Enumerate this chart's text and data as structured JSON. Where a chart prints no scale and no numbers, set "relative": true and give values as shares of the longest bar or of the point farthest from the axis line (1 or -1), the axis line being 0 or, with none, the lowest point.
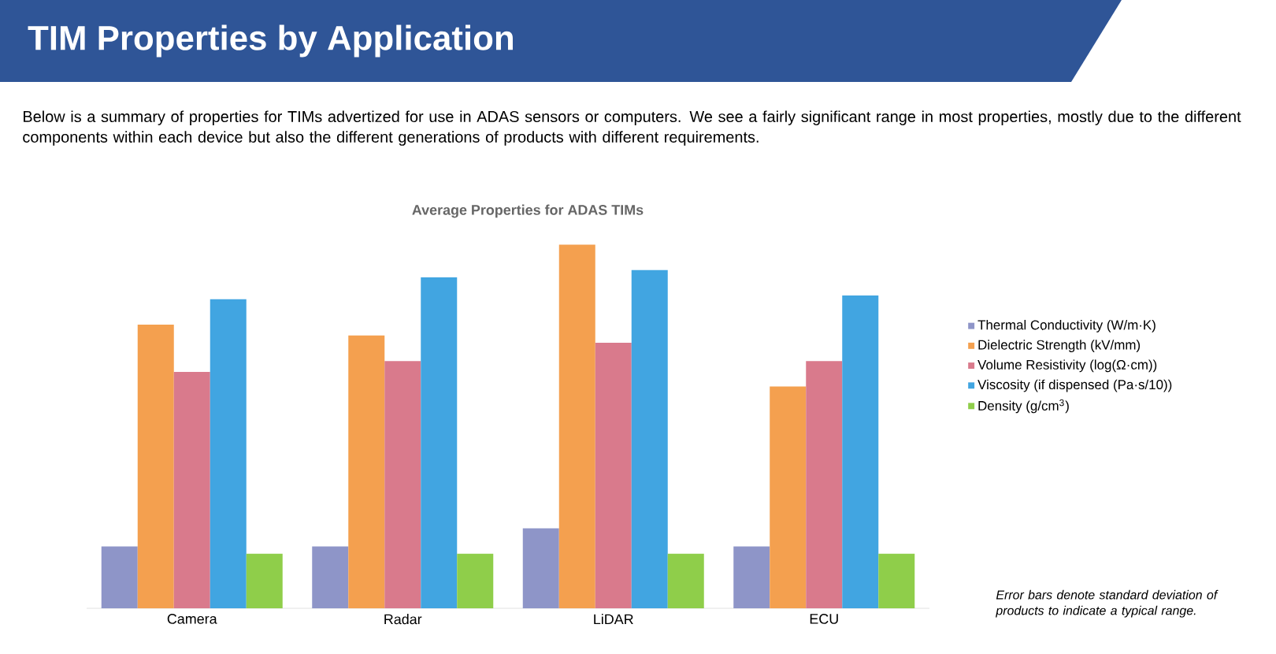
{
  "chart_data": {
    "type": "bar",
    "title": "TIM Properties by Application",
    "subtitle": "Below is a summary of properties for TIMs advertized for use in ADAS sensors or computers. We see a fairly significant range in most properties, mostly due to the different components within each device but also the different generations of products with different requirements.",
    "annotations": [
      "Average Properties for ADAS TIMs",
      "Error bars denote standard deviation of products to indicate a typical range."
    ],
    "categories": [
      "Camera",
      "Radar",
      "LiDAR",
      "ECU"
    ],
    "relative": true,
    "legend": "right",
    "series": [
      {
        "name": "Thermal Conductivity (W/m·K)",
        "color": "#8e95c8",
        "values": [
          0.17,
          0.17,
          0.22,
          0.17
        ]
      },
      {
        "name": "Dielectric Strength (kV/mm)",
        "color": "#f4a04f",
        "values": [
          0.78,
          0.75,
          1,
          0.61
        ]
      },
      {
        "name": "Volume Resistivity (log(Ω·cm))",
        "color": "#d97a8c",
        "values": [
          0.65,
          0.68,
          0.73,
          0.68
        ]
      },
      {
        "name": "Viscosity (if dispensed (Pa·s/10))",
        "color": "#41a5e1",
        "values": [
          0.85,
          0.91,
          0.93,
          0.86
        ]
      },
      {
        "name": "Density (g/cm$^{3}$)",
        "color": "#8fce4a",
        "values": [
          0.15,
          0.15,
          0.15,
          0.15
        ]
      }
    ]
  }
}
